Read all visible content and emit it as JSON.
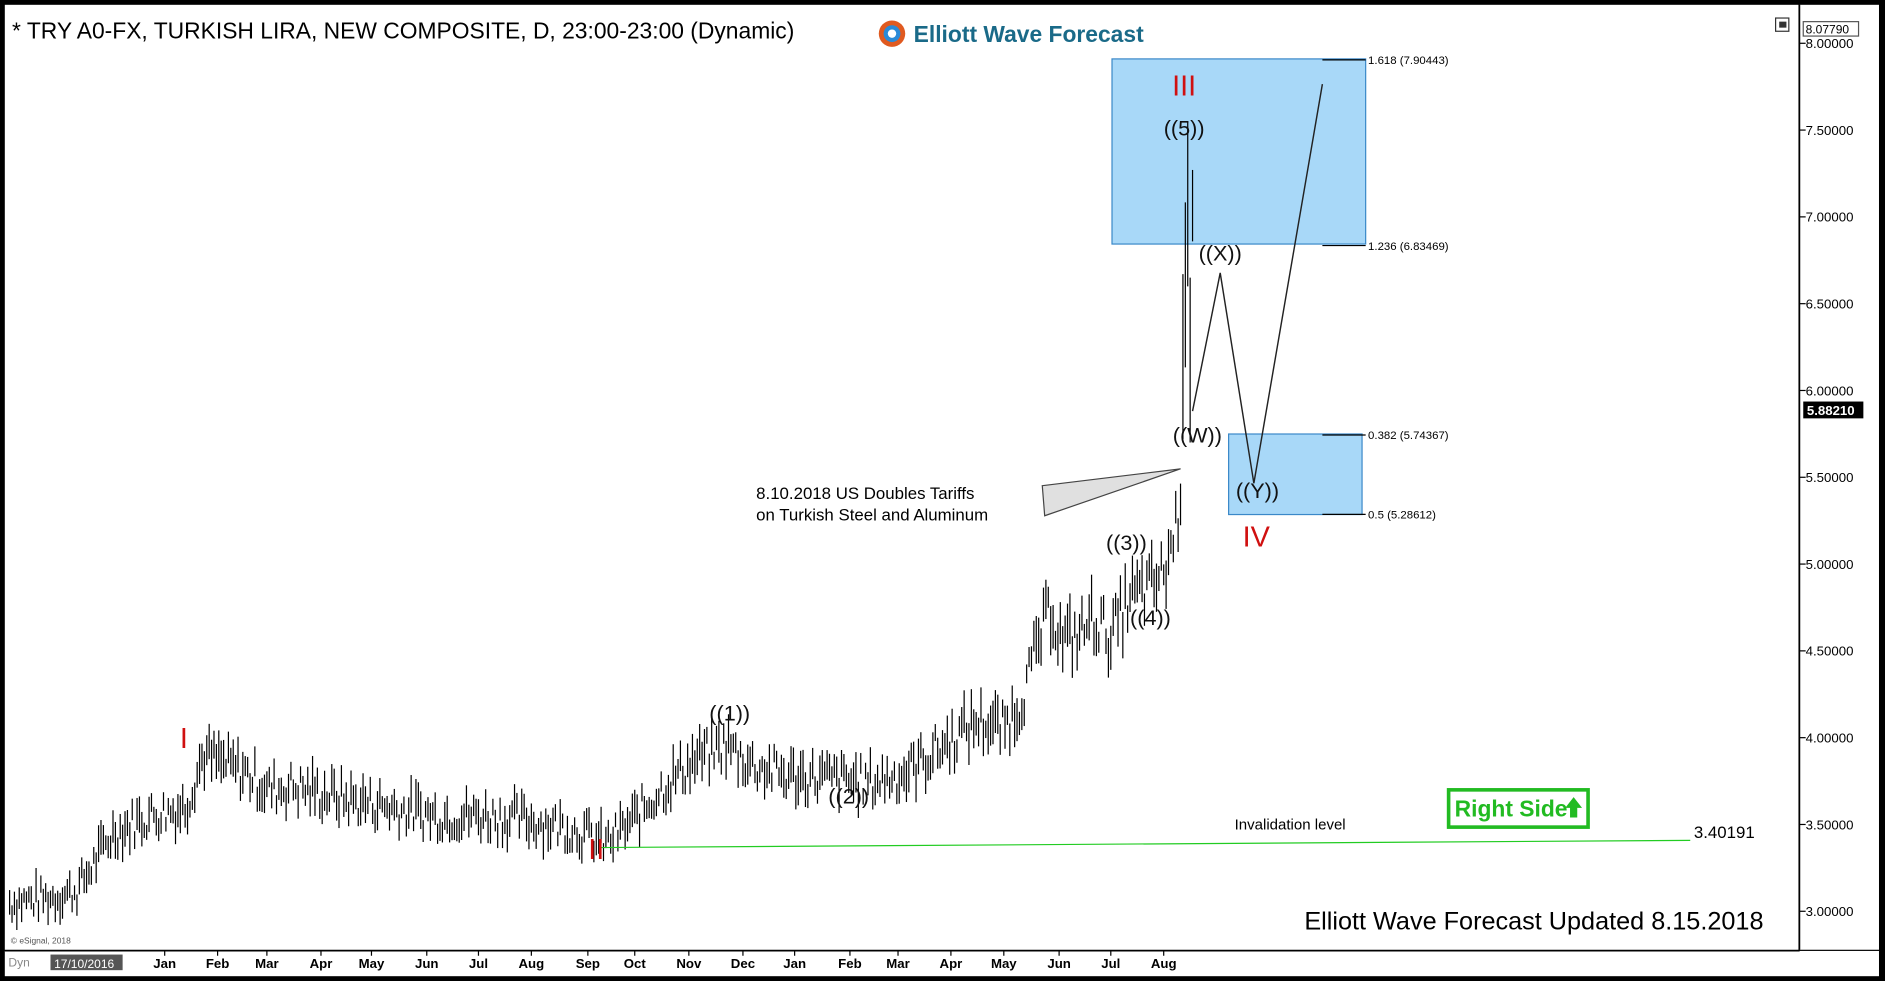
{
  "window": {
    "title": "* TRY A0-FX, TURKISH LIRA, NEW COMPOSITE, D, 23:00-23:00 (Dynamic)",
    "brand": "Elliott Wave Forecast",
    "copyright": "© eSignal, 2018",
    "corner_label": "Dyn",
    "date_cursor": "17/10/2016",
    "footer": "Elliott Wave Forecast Updated 8.15.2018",
    "right_side_label": "Right Side",
    "colors": {
      "background": "#ffffff",
      "frame": "#000000",
      "box": "#a8d8f8",
      "box_border": "#3a88c8",
      "red": "#d01010",
      "green_line": "#22cc22",
      "right_side": "#22bb22"
    }
  },
  "chart_data": {
    "type": "bar",
    "title": "* TRY A0-FX, TURKISH LIRA, NEW COMPOSITE, D, 23:00-23:00 (Dynamic)",
    "ylim": [
      2.78,
      8.2
    ],
    "y_ticks": [
      "8.00000",
      "7.50000",
      "7.00000",
      "6.50000",
      "6.00000",
      "5.50000",
      "5.00000",
      "4.50000",
      "4.00000",
      "3.50000",
      "3.00000"
    ],
    "x_ticks": [
      "Jan",
      "Feb",
      "Mar",
      "Apr",
      "May",
      "Jun",
      "Jul",
      "Aug",
      "Sep",
      "Oct",
      "Nov",
      "Dec",
      "Jan",
      "Feb",
      "Mar",
      "Apr",
      "May",
      "Jun",
      "Jul",
      "Aug"
    ],
    "last_price": "5.88210",
    "top_price": "8.07790",
    "price_path": [
      [
        0,
        3.05
      ],
      [
        40,
        3.08
      ],
      [
        60,
        3.12
      ],
      [
        90,
        3.45
      ],
      [
        120,
        3.55
      ],
      [
        150,
        3.6
      ],
      [
        165,
        3.9
      ],
      [
        180,
        3.85
      ],
      [
        200,
        3.8
      ],
      [
        220,
        3.7
      ],
      [
        240,
        3.72
      ],
      [
        280,
        3.65
      ],
      [
        320,
        3.6
      ],
      [
        360,
        3.55
      ],
      [
        400,
        3.55
      ],
      [
        440,
        3.52
      ],
      [
        470,
        3.48
      ],
      [
        500,
        3.39
      ],
      [
        520,
        3.5
      ],
      [
        545,
        3.7
      ],
      [
        570,
        3.85
      ],
      [
        600,
        3.96
      ],
      [
        620,
        3.85
      ],
      [
        650,
        3.78
      ],
      [
        690,
        3.76
      ],
      [
        720,
        3.74
      ],
      [
        750,
        3.8
      ],
      [
        780,
        3.95
      ],
      [
        810,
        4.1
      ],
      [
        830,
        4.05
      ],
      [
        845,
        4.2
      ],
      [
        860,
        4.55
      ],
      [
        870,
        4.75
      ],
      [
        880,
        4.55
      ],
      [
        895,
        4.6
      ],
      [
        905,
        4.7
      ],
      [
        920,
        4.58
      ],
      [
        935,
        4.8
      ],
      [
        950,
        4.85
      ],
      [
        965,
        4.95
      ],
      [
        975,
        5.25
      ],
      [
        980,
        5.6
      ],
      [
        985,
        6.5
      ],
      [
        988,
        7.2
      ],
      [
        990,
        6.3
      ],
      [
        992,
        5.88
      ]
    ],
    "wave_labels": [
      {
        "text": "I",
        "x": 153,
        "y": 3.94,
        "color": "red"
      },
      {
        "text": "II",
        "x": 496,
        "y": 3.3,
        "color": "red"
      },
      {
        "text": "((1))",
        "x": 607,
        "y": 4.1,
        "color": "black"
      },
      {
        "text": "((2))",
        "x": 706,
        "y": 3.62,
        "color": "black"
      },
      {
        "text": "((3))",
        "x": 937,
        "y": 5.08,
        "color": "black"
      },
      {
        "text": "((4))",
        "x": 957,
        "y": 4.65,
        "color": "black"
      },
      {
        "text": "((5))",
        "x": 985,
        "y": 7.47,
        "color": "black"
      },
      {
        "text": "III",
        "x": 985,
        "y": 7.7,
        "color": "red"
      },
      {
        "text": "((W))",
        "x": 996,
        "y": 5.7,
        "color": "black"
      },
      {
        "text": "((X))",
        "x": 1015,
        "y": 6.75,
        "color": "black"
      },
      {
        "text": "((Y))",
        "x": 1046,
        "y": 5.38,
        "color": "black"
      },
      {
        "text": "IV",
        "x": 1045,
        "y": 5.1,
        "color": "red"
      }
    ],
    "fib_levels": [
      {
        "label": "1.618 (7.90443)",
        "value": 7.90443
      },
      {
        "label": "1.236 (6.83469)",
        "value": 6.83469
      },
      {
        "label": "0.382 (5.74367)",
        "value": 5.74367
      },
      {
        "label": "0.5 (5.28612)",
        "value": 5.28612
      }
    ],
    "annotations": {
      "event_line1": "8.10.2018 US Doubles Tariffs",
      "event_line2": "on Turkish Steel and Aluminum",
      "invalidation_label": "Invalidation level",
      "invalidation_value": "3.40191"
    }
  }
}
